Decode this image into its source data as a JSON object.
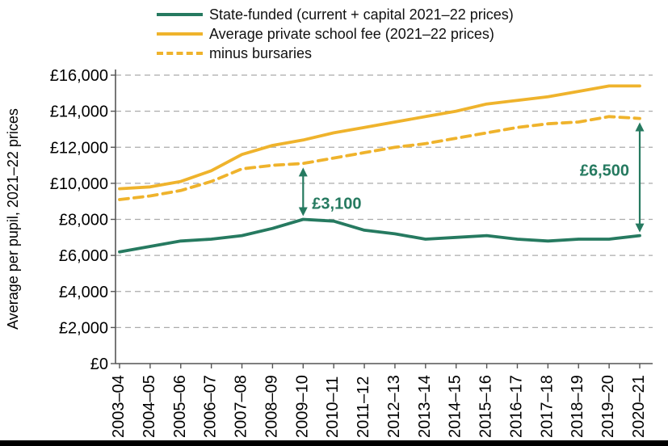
{
  "figure": {
    "background": "#ffffff",
    "bottom_bar_color": "#000000"
  },
  "chart_data": {
    "type": "line",
    "title": "",
    "ylabel": "Average per pupil, 2021–22 prices",
    "xlabel": "",
    "ylim": [
      0,
      16000
    ],
    "grid": "horizontal-dashed",
    "legend_position": "top-left",
    "annotation_color": "#267a60",
    "categories": [
      "2003–04",
      "2004–05",
      "2005–06",
      "2006–07",
      "2007–08",
      "2008–09",
      "2009–10",
      "2010–11",
      "2011–12",
      "2012–13",
      "2013–14",
      "2014–15",
      "2015–16",
      "2016–17",
      "2017–18",
      "2018–19",
      "2019–20",
      "2020–21"
    ],
    "y_ticks": [
      {
        "value": 0,
        "label": "£0"
      },
      {
        "value": 2000,
        "label": "£2,000"
      },
      {
        "value": 4000,
        "label": "£4,000"
      },
      {
        "value": 6000,
        "label": "£6,000"
      },
      {
        "value": 8000,
        "label": "£8,000"
      },
      {
        "value": 10000,
        "label": "£10,000"
      },
      {
        "value": 12000,
        "label": "£12,000"
      },
      {
        "value": 14000,
        "label": "£14,000"
      },
      {
        "value": 16000,
        "label": "£16,000"
      }
    ],
    "series": [
      {
        "name": "State-funded (current + capital 2021–22 prices)",
        "color": "#267a60",
        "style": "solid",
        "values": [
          6200,
          6500,
          6800,
          6900,
          7100,
          7500,
          8000,
          7900,
          7400,
          7200,
          6900,
          7000,
          7100,
          6900,
          6800,
          6900,
          6900,
          7100
        ]
      },
      {
        "name": "Average private school fee (2021–22 prices)",
        "color": "#efb32c",
        "style": "solid",
        "values": [
          9700,
          9800,
          10100,
          10700,
          11600,
          12100,
          12400,
          12800,
          13100,
          13400,
          13700,
          14000,
          14400,
          14600,
          14800,
          15100,
          15400,
          15400
        ]
      },
      {
        "name": "minus bursaries",
        "color": "#efb32c",
        "style": "dashed",
        "values": [
          9100,
          9300,
          9600,
          10100,
          10800,
          11000,
          11100,
          11400,
          11700,
          12000,
          12200,
          12500,
          12800,
          13100,
          13300,
          13400,
          13700,
          13600
        ]
      }
    ],
    "annotations": [
      {
        "label": "£3,100",
        "category": "2009–10",
        "from_series": 0,
        "to_series": 2,
        "label_side": "right"
      },
      {
        "label": "£6,500",
        "category": "2020–21",
        "from_series": 0,
        "to_series": 2,
        "label_side": "left"
      }
    ]
  }
}
